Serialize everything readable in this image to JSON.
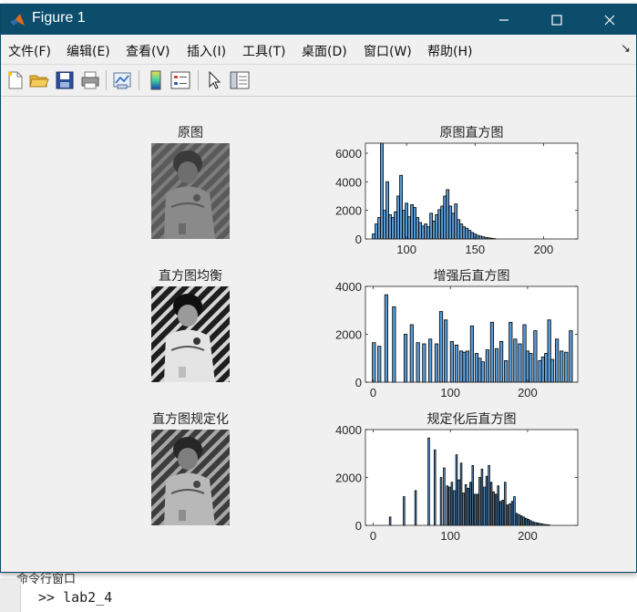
{
  "window": {
    "title": "Figure 1"
  },
  "menu": [
    "文件(F)",
    "编辑(E)",
    "查看(V)",
    "插入(I)",
    "工具(T)",
    "桌面(D)",
    "窗口(W)",
    "帮助(H)"
  ],
  "toolbar": [
    "new-figure-icon",
    "open-file-icon",
    "save-icon",
    "print-icon",
    "link-plot-icon",
    "colorbar-icon",
    "legend-icon",
    "pointer-icon",
    "property-inspector-icon"
  ],
  "background": {
    "command_window_label": "命令行窗口",
    "prompt": ">> lab2_4"
  },
  "subplots": {
    "original_title": "原图",
    "equalized_title": "直方图均衡",
    "specified_title": "直方图规定化"
  },
  "chart_data": [
    {
      "type": "bar",
      "title": "原图直方图",
      "xlim": [
        70,
        225
      ],
      "ylim": [
        0,
        6700
      ],
      "xticks": [
        100,
        150,
        200
      ],
      "yticks": [
        0,
        2000,
        4000,
        6000
      ],
      "bar_width": 2,
      "x": [
        76,
        78,
        80,
        82,
        84,
        86,
        88,
        90,
        92,
        94,
        96,
        98,
        100,
        102,
        104,
        106,
        108,
        110,
        112,
        114,
        116,
        118,
        120,
        122,
        124,
        126,
        128,
        130,
        132,
        134,
        136,
        138,
        140,
        142,
        144,
        146,
        148,
        150,
        152,
        154,
        156,
        158,
        160,
        162,
        164
      ],
      "values": [
        350,
        1050,
        1500,
        6700,
        2000,
        4000,
        1700,
        1500,
        1900,
        3000,
        4450,
        2000,
        2500,
        1550,
        2400,
        2200,
        1500,
        1150,
        900,
        1050,
        850,
        1800,
        1250,
        1700,
        2050,
        2300,
        3000,
        3450,
        2300,
        1800,
        2450,
        1350,
        1050,
        850,
        750,
        600,
        450,
        350,
        250,
        200,
        150,
        100,
        80,
        50,
        30
      ]
    },
    {
      "type": "bar",
      "title": "增强后直方图",
      "xlim": [
        -10,
        265
      ],
      "ylim": [
        0,
        4000
      ],
      "xticks": [
        0,
        100,
        200
      ],
      "yticks": [
        0,
        2000,
        4000
      ],
      "bar_width": 4,
      "x": [
        1,
        8,
        17,
        27,
        42,
        50,
        58,
        66,
        74,
        82,
        88,
        94,
        102,
        108,
        114,
        118,
        122,
        128,
        134,
        138,
        142,
        148,
        154,
        160,
        166,
        172,
        178,
        184,
        190,
        196,
        200,
        204,
        210,
        216,
        220,
        224,
        228,
        232,
        238,
        244,
        250,
        256
      ],
      "values": [
        1650,
        1500,
        3650,
        3150,
        2000,
        2400,
        1650,
        1600,
        1800,
        1600,
        2950,
        2600,
        1700,
        1550,
        1300,
        1250,
        1300,
        2350,
        1200,
        1000,
        850,
        1350,
        2500,
        1400,
        1700,
        900,
        2500,
        1800,
        1600,
        2400,
        1300,
        1200,
        2150,
        900,
        1050,
        1200,
        2600,
        950,
        1800,
        1300,
        1250,
        2150
      ]
    },
    {
      "type": "bar",
      "title": "规定化后直方图",
      "xlim": [
        -10,
        265
      ],
      "ylim": [
        0,
        4000
      ],
      "xticks": [
        0,
        100,
        200
      ],
      "yticks": [
        0,
        2000,
        4000
      ],
      "bar_width": 2,
      "x": [
        22,
        40,
        55,
        72,
        80,
        88,
        92,
        96,
        99,
        102,
        105,
        108,
        111,
        114,
        117,
        120,
        123,
        126,
        129,
        132,
        135,
        138,
        141,
        144,
        147,
        150,
        153,
        156,
        159,
        162,
        165,
        168,
        171,
        174,
        177,
        180,
        183,
        186,
        189,
        192,
        195,
        198,
        201,
        204,
        207,
        210,
        213,
        216,
        219,
        222,
        225,
        228
      ],
      "values": [
        350,
        1200,
        1450,
        3650,
        3150,
        2000,
        2400,
        1650,
        1600,
        1800,
        1450,
        2950,
        1900,
        2600,
        1350,
        1700,
        1550,
        1800,
        2500,
        1300,
        1300,
        2000,
        2350,
        1600,
        2050,
        2500,
        1800,
        1400,
        1300,
        1650,
        1000,
        1050,
        1800,
        850,
        900,
        1000,
        1200,
        500,
        450,
        400,
        350,
        300,
        250,
        200,
        150,
        120,
        100,
        80,
        60,
        40,
        30,
        20
      ]
    }
  ]
}
